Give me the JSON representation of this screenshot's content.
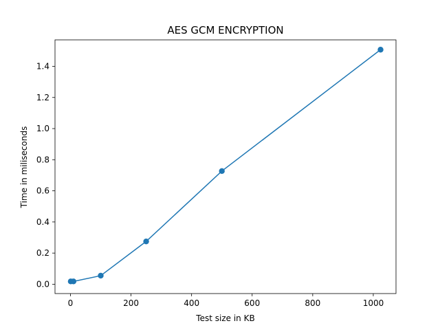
{
  "chart_data": {
    "type": "line",
    "title": "AES GCM ENCRYPTION",
    "xlabel": "Test size in KB",
    "ylabel": "Time in miliseconds",
    "xlim": [
      -51,
      1075
    ],
    "ylim": [
      -0.06,
      1.57
    ],
    "xticks": [
      0,
      200,
      400,
      600,
      800,
      1000
    ],
    "xtick_labels": [
      "0",
      "200",
      "400",
      "600",
      "800",
      "1000"
    ],
    "yticks": [
      0.0,
      0.2,
      0.4,
      0.6,
      0.8,
      1.0,
      1.2,
      1.4
    ],
    "ytick_labels": [
      "0.0",
      "0.2",
      "0.4",
      "0.6",
      "0.8",
      "1.0",
      "1.2",
      "1.4"
    ],
    "grid": false,
    "series": [
      {
        "name": "AES GCM",
        "color": "#1f77b4",
        "marker": "circle",
        "x": [
          1,
          10,
          100,
          250,
          500,
          1024
        ],
        "y": [
          0.018,
          0.018,
          0.055,
          0.275,
          0.727,
          1.507
        ]
      }
    ]
  }
}
